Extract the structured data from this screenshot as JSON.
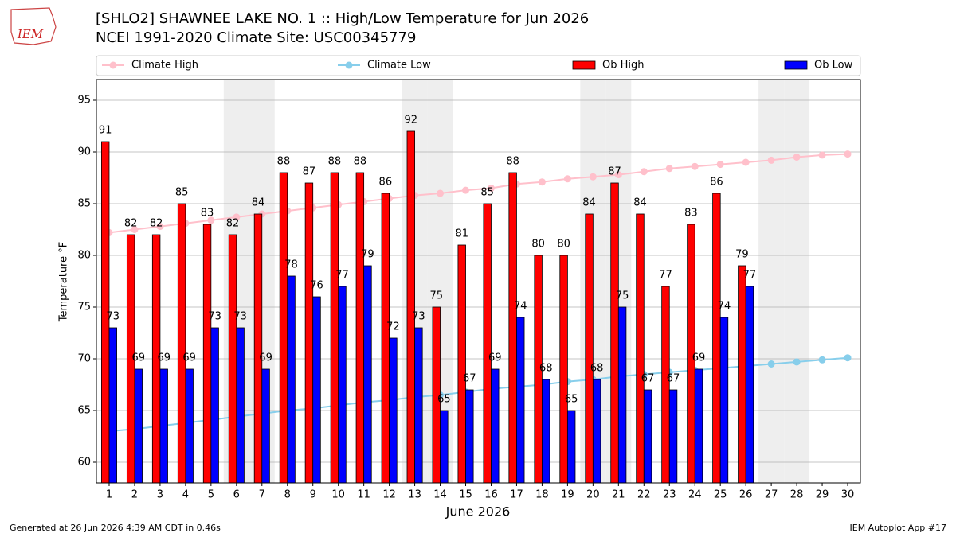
{
  "header": {
    "logo": "IEM"
  },
  "chart_data": {
    "type": "bar",
    "title": "[SHLO2] SHAWNEE LAKE NO. 1 :: High/Low Temperature for Jun 2026",
    "subtitle": "NCEI 1991-2020 Climate Site: USC00345779",
    "x_label": "June 2026",
    "y_label": "Temperature °F",
    "x": [
      1,
      2,
      3,
      4,
      5,
      6,
      7,
      8,
      9,
      10,
      11,
      12,
      13,
      14,
      15,
      16,
      17,
      18,
      19,
      20,
      21,
      22,
      23,
      24,
      25,
      26,
      27,
      28,
      29,
      30
    ],
    "xlim": [
      0.5,
      30.5
    ],
    "xticks": [
      1,
      2,
      3,
      4,
      5,
      6,
      7,
      8,
      9,
      10,
      11,
      12,
      13,
      14,
      15,
      16,
      17,
      18,
      19,
      20,
      21,
      22,
      23,
      24,
      25,
      26,
      27,
      28,
      29,
      30
    ],
    "ylim": [
      58,
      97
    ],
    "yticks": [
      60,
      65,
      70,
      75,
      80,
      85,
      90,
      95
    ],
    "grid": true,
    "shaded_days": [
      6,
      7,
      13,
      14,
      20,
      21,
      27,
      28
    ],
    "series": [
      {
        "name": "Climate High",
        "type": "line",
        "color": "#ffc0cb",
        "values": [
          82.2,
          82.5,
          82.8,
          83.1,
          83.4,
          83.7,
          84.0,
          84.3,
          84.6,
          84.9,
          85.2,
          85.5,
          85.8,
          86.0,
          86.3,
          86.5,
          86.9,
          87.1,
          87.4,
          87.6,
          87.8,
          88.1,
          88.4,
          88.6,
          88.8,
          89.0,
          89.2,
          89.5,
          89.7,
          89.8
        ]
      },
      {
        "name": "Climate Low",
        "type": "line",
        "color": "#87ceeb",
        "values": [
          63.0,
          63.2,
          63.5,
          63.8,
          64.1,
          64.4,
          64.7,
          65.0,
          65.2,
          65.5,
          65.8,
          66.0,
          66.3,
          66.5,
          66.8,
          67.1,
          67.3,
          67.5,
          67.8,
          68.0,
          68.3,
          68.5,
          68.7,
          68.9,
          69.1,
          69.3,
          69.5,
          69.7,
          69.9,
          70.1
        ]
      },
      {
        "name": "Ob High",
        "type": "bar",
        "color": "#ff0000",
        "values": [
          91,
          82,
          82,
          85,
          83,
          82,
          84,
          88,
          87,
          88,
          88,
          86,
          92,
          75,
          81,
          85,
          88,
          80,
          80,
          84,
          87,
          84,
          77,
          83,
          86,
          79,
          null,
          null,
          null,
          null
        ]
      },
      {
        "name": "Ob Low",
        "type": "bar",
        "color": "#0000ff",
        "values": [
          73,
          69,
          69,
          69,
          73,
          73,
          69,
          78,
          76,
          77,
          79,
          72,
          73,
          65,
          67,
          69,
          74,
          68,
          65,
          68,
          75,
          67,
          67,
          69,
          74,
          77,
          null,
          null,
          null,
          null
        ]
      }
    ]
  },
  "footer": {
    "left": "Generated at 26 Jun 2026 4:39 AM CDT in 0.46s",
    "right": "IEM Autoplot App #17"
  }
}
